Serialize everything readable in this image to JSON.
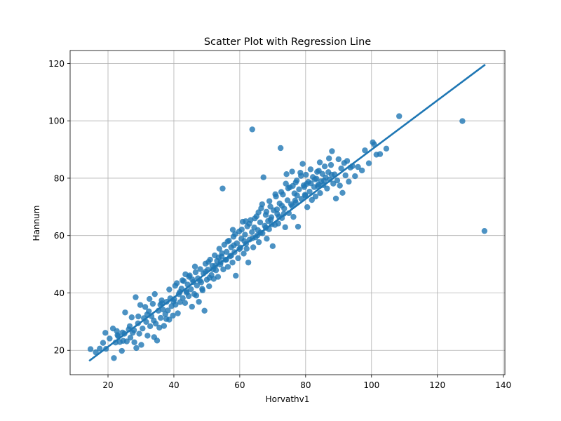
{
  "chart_data": {
    "type": "scatter",
    "title": "Scatter Plot with Regression Line",
    "xlabel": "Horvathv1",
    "ylabel": "Hannum",
    "xlim": [
      8.5,
      140.5
    ],
    "ylim": [
      11.5,
      124.5
    ],
    "xticks": [
      20,
      40,
      60,
      80,
      100,
      120,
      140
    ],
    "yticks": [
      20,
      40,
      60,
      80,
      100,
      120
    ],
    "grid": true,
    "point_color": "#1f77b4",
    "line_color": "#1f77b4",
    "regression_line": {
      "x": [
        14.5,
        134.3
      ],
      "y": [
        16.5,
        119.4
      ]
    },
    "points": [
      [
        14.7,
        20.4
      ],
      [
        16.3,
        19.3
      ],
      [
        17.5,
        20.6
      ],
      [
        18.5,
        22.6
      ],
      [
        19.2,
        26.1
      ],
      [
        19.4,
        20.5
      ],
      [
        20.5,
        24.1
      ],
      [
        21.5,
        27.6
      ],
      [
        21.8,
        17.3
      ],
      [
        22.3,
        22.7
      ],
      [
        22.7,
        26.7
      ],
      [
        23.1,
        24.9
      ],
      [
        23.6,
        22.9
      ],
      [
        24.2,
        19.8
      ],
      [
        24.6,
        23.3
      ],
      [
        25.0,
        25.8
      ],
      [
        25.2,
        33.2
      ],
      [
        25.7,
        23.1
      ],
      [
        26.3,
        27.3
      ],
      [
        26.8,
        24.4
      ],
      [
        27.2,
        31.5
      ],
      [
        27.5,
        26.1
      ],
      [
        28.0,
        22.8
      ],
      [
        28.4,
        38.5
      ],
      [
        28.6,
        20.8
      ],
      [
        29.1,
        29.4
      ],
      [
        29.5,
        25.8
      ],
      [
        29.8,
        35.8
      ],
      [
        30.1,
        21.9
      ],
      [
        30.5,
        27.6
      ],
      [
        30.9,
        31.2
      ],
      [
        31.3,
        35.1
      ],
      [
        31.6,
        29.9
      ],
      [
        32.0,
        25.1
      ],
      [
        32.4,
        33.6
      ],
      [
        32.8,
        28.4
      ],
      [
        33.2,
        31.9
      ],
      [
        33.6,
        36.2
      ],
      [
        34.0,
        24.6
      ],
      [
        34.2,
        39.6
      ],
      [
        34.5,
        29.3
      ],
      [
        34.9,
        23.4
      ],
      [
        35.3,
        33.8
      ],
      [
        35.6,
        27.9
      ],
      [
        36.0,
        31.3
      ],
      [
        36.3,
        37.4
      ],
      [
        36.7,
        34.2
      ],
      [
        37.0,
        28.5
      ],
      [
        37.4,
        32.6
      ],
      [
        37.8,
        36.9
      ],
      [
        38.2,
        33.9
      ],
      [
        38.6,
        30.7
      ],
      [
        38.9,
        38.1
      ],
      [
        39.3,
        35.4
      ],
      [
        39.7,
        32.1
      ],
      [
        40.1,
        37.8
      ],
      [
        40.5,
        35.9
      ],
      [
        40.9,
        43.4
      ],
      [
        41.2,
        32.9
      ],
      [
        41.5,
        39.6
      ],
      [
        41.9,
        36.8
      ],
      [
        42.3,
        41.5
      ],
      [
        42.7,
        38.2
      ],
      [
        43.0,
        44.1
      ],
      [
        43.4,
        36.5
      ],
      [
        43.8,
        40.6
      ],
      [
        44.2,
        42.9
      ],
      [
        44.5,
        38.9
      ],
      [
        44.8,
        46.1
      ],
      [
        45.2,
        41.3
      ],
      [
        45.5,
        35.2
      ],
      [
        45.9,
        43.8
      ],
      [
        46.2,
        39.6
      ],
      [
        46.6,
        47.2
      ],
      [
        47.0,
        42.6
      ],
      [
        47.3,
        45.1
      ],
      [
        47.6,
        36.9
      ],
      [
        48.0,
        48.3
      ],
      [
        48.3,
        43.7
      ],
      [
        48.7,
        40.9
      ],
      [
        49.0,
        46.8
      ],
      [
        49.3,
        33.8
      ],
      [
        49.6,
        50.2
      ],
      [
        50.0,
        44.6
      ],
      [
        50.3,
        48.1
      ],
      [
        50.7,
        42.3
      ],
      [
        51.0,
        51.6
      ],
      [
        51.4,
        46.2
      ],
      [
        51.7,
        49.4
      ],
      [
        52.1,
        44.9
      ],
      [
        52.4,
        53.1
      ],
      [
        52.8,
        47.9
      ],
      [
        53.1,
        51.2
      ],
      [
        53.4,
        45.6
      ],
      [
        53.8,
        55.4
      ],
      [
        54.1,
        49.9
      ],
      [
        54.5,
        52.7
      ],
      [
        54.8,
        76.4
      ],
      [
        55.0,
        48.2
      ],
      [
        55.3,
        56.8
      ],
      [
        55.7,
        51.5
      ],
      [
        56.0,
        54.3
      ],
      [
        56.4,
        49.1
      ],
      [
        56.7,
        58.2
      ],
      [
        57.1,
        52.8
      ],
      [
        57.4,
        55.9
      ],
      [
        57.8,
        50.6
      ],
      [
        58.1,
        59.6
      ],
      [
        58.4,
        54.2
      ],
      [
        58.8,
        46.0
      ],
      [
        59.1,
        57.3
      ],
      [
        59.5,
        52.1
      ],
      [
        59.8,
        61.4
      ],
      [
        60.2,
        55.8
      ],
      [
        60.5,
        58.9
      ],
      [
        60.9,
        64.8
      ],
      [
        61.2,
        53.7
      ],
      [
        61.6,
        60.3
      ],
      [
        61.9,
        57.1
      ],
      [
        62.3,
        63.2
      ],
      [
        62.6,
        50.6
      ],
      [
        63.0,
        58.6
      ],
      [
        63.3,
        65.4
      ],
      [
        63.7,
        61.2
      ],
      [
        63.8,
        97.0
      ],
      [
        64.1,
        55.9
      ],
      [
        64.4,
        62.8
      ],
      [
        64.8,
        59.4
      ],
      [
        65.1,
        66.7
      ],
      [
        65.5,
        61.9
      ],
      [
        65.8,
        57.7
      ],
      [
        66.2,
        64.6
      ],
      [
        66.5,
        69.5
      ],
      [
        66.9,
        60.8
      ],
      [
        67.2,
        80.3
      ],
      [
        67.6,
        63.4
      ],
      [
        67.9,
        67.2
      ],
      [
        68.2,
        58.9
      ],
      [
        68.6,
        65.1
      ],
      [
        68.9,
        62.2
      ],
      [
        69.3,
        70.1
      ],
      [
        69.6,
        66.4
      ],
      [
        70.0,
        56.3
      ],
      [
        70.3,
        68.8
      ],
      [
        70.7,
        63.7
      ],
      [
        71.0,
        73.6
      ],
      [
        71.4,
        67.5
      ],
      [
        71.7,
        64.2
      ],
      [
        72.1,
        71.2
      ],
      [
        72.4,
        90.5
      ],
      [
        72.8,
        66.1
      ],
      [
        73.1,
        74.3
      ],
      [
        73.5,
        69.4
      ],
      [
        73.8,
        62.9
      ],
      [
        74.2,
        81.4
      ],
      [
        74.5,
        72.3
      ],
      [
        74.9,
        67.8
      ],
      [
        75.2,
        76.8
      ],
      [
        75.6,
        70.9
      ],
      [
        75.9,
        82.3
      ],
      [
        76.3,
        66.5
      ],
      [
        76.6,
        74.7
      ],
      [
        77.0,
        71.5
      ],
      [
        77.3,
        79.2
      ],
      [
        77.7,
        63.1
      ],
      [
        78.0,
        76.1
      ],
      [
        78.4,
        81.9
      ],
      [
        78.7,
        72.8
      ],
      [
        79.1,
        85.0
      ],
      [
        79.4,
        77.5
      ],
      [
        79.8,
        74.2
      ],
      [
        80.1,
        81.2
      ],
      [
        80.5,
        69.9
      ],
      [
        80.8,
        78.7
      ],
      [
        81.2,
        75.3
      ],
      [
        81.5,
        83.1
      ],
      [
        81.9,
        72.4
      ],
      [
        82.2,
        80.4
      ],
      [
        82.6,
        76.9
      ],
      [
        83.0,
        73.6
      ],
      [
        83.3,
        79.8
      ],
      [
        83.7,
        77.2
      ],
      [
        84.0,
        82.6
      ],
      [
        84.4,
        74.8
      ],
      [
        84.7,
        78.9
      ],
      [
        85.1,
        81.5
      ],
      [
        85.4,
        77.6
      ],
      [
        85.8,
        84.1
      ],
      [
        86.1,
        80.2
      ],
      [
        86.5,
        76.4
      ],
      [
        86.9,
        82.1
      ],
      [
        87.3,
        79.5
      ],
      [
        87.7,
        84.6
      ],
      [
        88.0,
        89.4
      ],
      [
        88.4,
        78.1
      ],
      [
        88.8,
        81.3
      ],
      [
        89.2,
        72.9
      ],
      [
        89.6,
        79.2
      ],
      [
        90.0,
        86.6
      ],
      [
        90.4,
        77.4
      ],
      [
        90.8,
        83.4
      ],
      [
        91.2,
        74.9
      ],
      [
        91.7,
        85.3
      ],
      [
        92.1,
        81.0
      ],
      [
        92.6,
        86.0
      ],
      [
        93.1,
        78.8
      ],
      [
        93.6,
        83.7
      ],
      [
        94.2,
        84.2
      ],
      [
        95.0,
        80.7
      ],
      [
        95.9,
        83.9
      ],
      [
        97.1,
        82.7
      ],
      [
        98.0,
        89.7
      ],
      [
        99.2,
        85.2
      ],
      [
        100.4,
        92.5
      ],
      [
        100.8,
        91.8
      ],
      [
        101.5,
        88.2
      ],
      [
        102.6,
        88.4
      ],
      [
        104.5,
        90.3
      ],
      [
        108.4,
        101.6
      ],
      [
        127.6,
        99.9
      ],
      [
        134.3,
        61.6
      ],
      [
        27.9,
        27.0
      ],
      [
        31.9,
        32.5
      ],
      [
        35.9,
        35.9
      ],
      [
        39.9,
        37.0
      ],
      [
        43.9,
        40.1
      ],
      [
        47.9,
        44.3
      ],
      [
        51.9,
        48.2
      ],
      [
        55.9,
        51.6
      ],
      [
        59.9,
        55.3
      ],
      [
        63.9,
        59.1
      ],
      [
        67.9,
        62.7
      ],
      [
        71.9,
        66.6
      ],
      [
        75.9,
        70.3
      ],
      [
        79.9,
        73.9
      ],
      [
        83.9,
        77.8
      ],
      [
        87.9,
        81.2
      ],
      [
        46.8,
        39.1
      ],
      [
        52.6,
        49.5
      ],
      [
        58.2,
        56.6
      ],
      [
        62.1,
        55.4
      ],
      [
        66.3,
        61.0
      ],
      [
        69.7,
        63.9
      ],
      [
        72.8,
        70.4
      ],
      [
        76.8,
        72.2
      ],
      [
        81.6,
        78.2
      ],
      [
        85.6,
        79.1
      ],
      [
        33.9,
        30.4
      ],
      [
        37.7,
        30.9
      ],
      [
        41.8,
        40.3
      ],
      [
        45.6,
        44.7
      ],
      [
        49.6,
        47.4
      ],
      [
        53.6,
        52.4
      ],
      [
        57.4,
        53.0
      ],
      [
        61.4,
        58.1
      ],
      [
        65.4,
        60.1
      ],
      [
        69.4,
        65.6
      ],
      [
        73.4,
        67.6
      ],
      [
        77.4,
        74.0
      ],
      [
        24.4,
        26.2
      ],
      [
        29.2,
        31.8
      ],
      [
        43.5,
        46.5
      ],
      [
        50.5,
        50.8
      ],
      [
        56.3,
        57.9
      ],
      [
        60.6,
        62.1
      ],
      [
        64.6,
        66.0
      ],
      [
        68.1,
        68.3
      ],
      [
        71.3,
        69.1
      ],
      [
        74.7,
        76.5
      ],
      [
        78.6,
        80.8
      ],
      [
        82.8,
        79.6
      ],
      [
        22.9,
        25.3
      ],
      [
        26.6,
        28.4
      ],
      [
        36.4,
        36.4
      ],
      [
        40.4,
        42.5
      ],
      [
        44.6,
        45.6
      ],
      [
        48.6,
        41.4
      ],
      [
        54.6,
        53.8
      ],
      [
        58.6,
        60.5
      ],
      [
        62.9,
        64.1
      ],
      [
        66.8,
        70.9
      ],
      [
        70.8,
        74.4
      ],
      [
        74.0,
        78.1
      ],
      [
        77.0,
        78.5
      ],
      [
        80.3,
        78.0
      ],
      [
        84.3,
        85.5
      ],
      [
        87.1,
        86.9
      ],
      [
        32.6,
        37.9
      ],
      [
        38.6,
        41.2
      ],
      [
        42.6,
        44.4
      ],
      [
        46.4,
        49.2
      ],
      [
        50.8,
        45.3
      ],
      [
        54.2,
        50.7
      ],
      [
        57.9,
        62.0
      ],
      [
        61.8,
        65.0
      ],
      [
        65.7,
        68.1
      ],
      [
        69.0,
        72.0
      ],
      [
        72.6,
        75.2
      ],
      [
        76.1,
        77.3
      ],
      [
        79.6,
        76.9
      ],
      [
        83.5,
        82.2
      ]
    ]
  }
}
